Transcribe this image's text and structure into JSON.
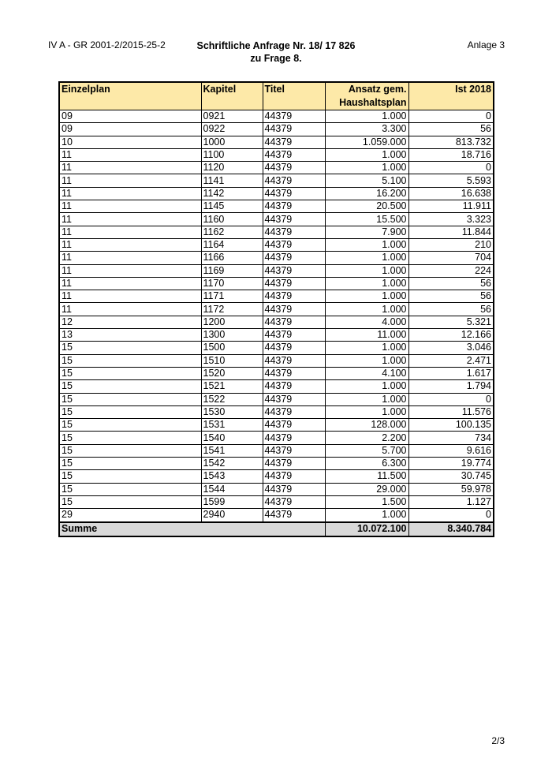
{
  "header": {
    "reference": "IV A - GR 2001-2/2015-25-2",
    "title_line1": "Schriftliche Anfrage Nr. 18/ 17 826",
    "title_line2": "zu Frage 8.",
    "attachment": "Anlage 3"
  },
  "table": {
    "columns": [
      "Einzelplan",
      "Kapitel",
      "Titel",
      "Ansatz gem. Haushaltsplan",
      "Ist 2018"
    ],
    "rows": [
      [
        "09",
        "0921",
        "44379",
        "1.000",
        "0"
      ],
      [
        "09",
        "0922",
        "44379",
        "3.300",
        "56"
      ],
      [
        "10",
        "1000",
        "44379",
        "1.059.000",
        "813.732"
      ],
      [
        "11",
        "1100",
        "44379",
        "1.000",
        "18.716"
      ],
      [
        "11",
        "1120",
        "44379",
        "1.000",
        "0"
      ],
      [
        "11",
        "1141",
        "44379",
        "5.100",
        "5.593"
      ],
      [
        "11",
        "1142",
        "44379",
        "16.200",
        "16.638"
      ],
      [
        "11",
        "1145",
        "44379",
        "20.500",
        "11.911"
      ],
      [
        "11",
        "1160",
        "44379",
        "15.500",
        "3.323"
      ],
      [
        "11",
        "1162",
        "44379",
        "7.900",
        "11.844"
      ],
      [
        "11",
        "1164",
        "44379",
        "1.000",
        "210"
      ],
      [
        "11",
        "1166",
        "44379",
        "1.000",
        "704"
      ],
      [
        "11",
        "1169",
        "44379",
        "1.000",
        "224"
      ],
      [
        "11",
        "1170",
        "44379",
        "1.000",
        "56"
      ],
      [
        "11",
        "1171",
        "44379",
        "1.000",
        "56"
      ],
      [
        "11",
        "1172",
        "44379",
        "1.000",
        "56"
      ],
      [
        "12",
        "1200",
        "44379",
        "4.000",
        "5.321"
      ],
      [
        "13",
        "1300",
        "44379",
        "11.000",
        "12.166"
      ],
      [
        "15",
        "1500",
        "44379",
        "1.000",
        "3.046"
      ],
      [
        "15",
        "1510",
        "44379",
        "1.000",
        "2.471"
      ],
      [
        "15",
        "1520",
        "44379",
        "4.100",
        "1.617"
      ],
      [
        "15",
        "1521",
        "44379",
        "1.000",
        "1.794"
      ],
      [
        "15",
        "1522",
        "44379",
        "1.000",
        "0"
      ],
      [
        "15",
        "1530",
        "44379",
        "1.000",
        "11.576"
      ],
      [
        "15",
        "1531",
        "44379",
        "128.000",
        "100.135"
      ],
      [
        "15",
        "1540",
        "44379",
        "2.200",
        "734"
      ],
      [
        "15",
        "1541",
        "44379",
        "5.700",
        "9.616"
      ],
      [
        "15",
        "1542",
        "44379",
        "6.300",
        "19.774"
      ],
      [
        "15",
        "1543",
        "44379",
        "11.500",
        "30.745"
      ],
      [
        "15",
        "1544",
        "44379",
        "29.000",
        "59.978"
      ],
      [
        "15",
        "1599",
        "44379",
        "1.500",
        "1.127"
      ],
      [
        "29",
        "2940",
        "44379",
        "1.000",
        "0"
      ]
    ],
    "total": {
      "label": "Summe",
      "ansatz": "10.072.100",
      "ist": "8.340.784"
    },
    "colors": {
      "header_bg": "#fde9a8",
      "total_bg": "#d9d9d9"
    }
  },
  "footer": {
    "page": "2/3"
  }
}
